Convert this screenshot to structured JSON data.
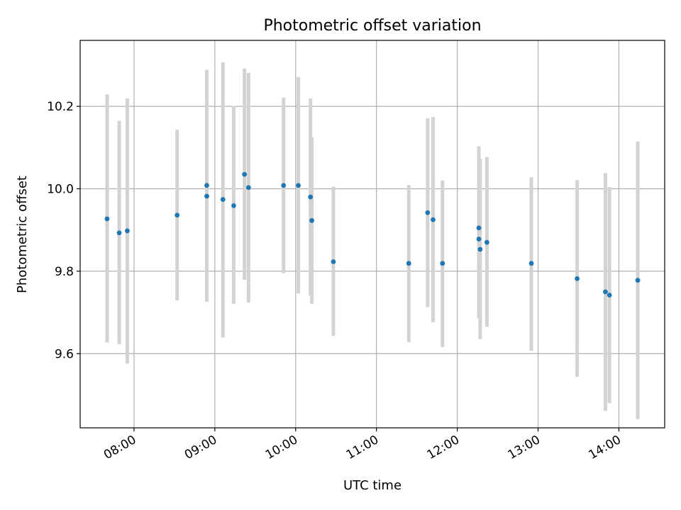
{
  "chart_data": {
    "type": "scatter",
    "title": "Photometric offset variation",
    "xlabel": "UTC time",
    "ylabel": "Photometric offset",
    "x_unit": "hours UTC",
    "xlim": [
      "07:20",
      "14:34"
    ],
    "ylim": [
      9.42,
      10.36
    ],
    "x_ticks": [
      "08:00",
      "09:00",
      "10:00",
      "11:00",
      "12:00",
      "13:00",
      "14:00"
    ],
    "y_ticks": [
      "9.6",
      "9.8",
      "10.0",
      "10.2"
    ],
    "grid": true,
    "marker_color": "#1f77b4",
    "errorbar_color": "#d3d3d3",
    "points": [
      {
        "time": "07:40",
        "y": 9.927,
        "low": 9.627,
        "high": 10.229
      },
      {
        "time": "07:49",
        "y": 9.893,
        "low": 9.623,
        "high": 10.165
      },
      {
        "time": "07:55",
        "y": 9.898,
        "low": 9.576,
        "high": 10.219
      },
      {
        "time": "08:32",
        "y": 9.936,
        "low": 9.729,
        "high": 10.143
      },
      {
        "time": "08:54",
        "y": 10.008,
        "low": 9.726,
        "high": 10.288
      },
      {
        "time": "08:54",
        "y": 9.982,
        "low": 9.726,
        "high": 10.288
      },
      {
        "time": "09:06",
        "y": 9.974,
        "low": 9.639,
        "high": 10.307
      },
      {
        "time": "09:14",
        "y": 9.959,
        "low": 9.721,
        "high": 10.201
      },
      {
        "time": "09:22",
        "y": 10.035,
        "low": 9.779,
        "high": 10.292
      },
      {
        "time": "09:25",
        "y": 10.003,
        "low": 9.724,
        "high": 10.281
      },
      {
        "time": "09:51",
        "y": 10.008,
        "low": 9.795,
        "high": 10.221
      },
      {
        "time": "10:02",
        "y": 10.008,
        "low": 9.746,
        "high": 10.271
      },
      {
        "time": "10:11",
        "y": 9.98,
        "low": 9.741,
        "high": 10.219
      },
      {
        "time": "10:12",
        "y": 9.923,
        "low": 9.721,
        "high": 10.125
      },
      {
        "time": "10:28",
        "y": 9.823,
        "low": 9.643,
        "high": 10.005
      },
      {
        "time": "11:24",
        "y": 9.819,
        "low": 9.628,
        "high": 10.009
      },
      {
        "time": "11:38",
        "y": 9.942,
        "low": 9.713,
        "high": 10.171
      },
      {
        "time": "11:42",
        "y": 9.925,
        "low": 9.676,
        "high": 10.174
      },
      {
        "time": "11:49",
        "y": 9.819,
        "low": 9.616,
        "high": 10.02
      },
      {
        "time": "12:16",
        "y": 9.905,
        "low": 9.706,
        "high": 10.103
      },
      {
        "time": "12:16",
        "y": 9.878,
        "low": 9.686,
        "high": 10.073
      },
      {
        "time": "12:17",
        "y": 9.853,
        "low": 9.635,
        "high": 10.073
      },
      {
        "time": "12:22",
        "y": 9.87,
        "low": 9.665,
        "high": 10.077
      },
      {
        "time": "12:55",
        "y": 9.819,
        "low": 9.607,
        "high": 10.028
      },
      {
        "time": "13:29",
        "y": 9.782,
        "low": 9.544,
        "high": 10.021
      },
      {
        "time": "13:50",
        "y": 9.75,
        "low": 9.461,
        "high": 10.038
      },
      {
        "time": "13:53",
        "y": 9.742,
        "low": 9.48,
        "high": 10.004
      },
      {
        "time": "14:14",
        "y": 9.778,
        "low": 9.441,
        "high": 10.115
      }
    ]
  }
}
